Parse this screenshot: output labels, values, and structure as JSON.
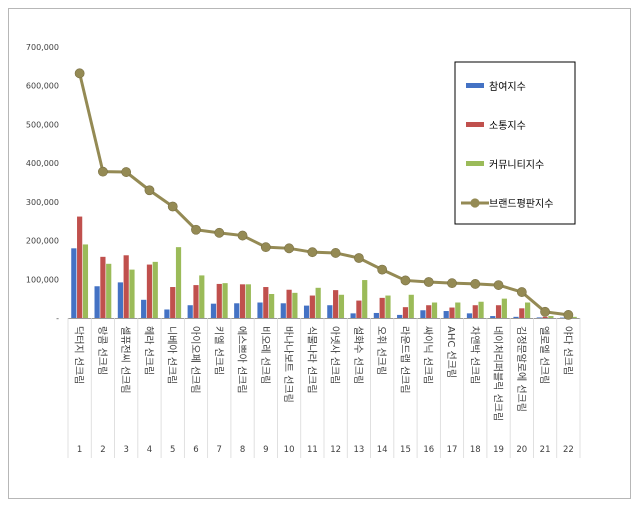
{
  "chart_data": {
    "type": "bar",
    "title": "",
    "xlabel": "",
    "ylabel": "",
    "ylim": [
      0,
      700000
    ],
    "y_ticks": [
      "-",
      "100,000",
      "200,000",
      "300,000",
      "400,000",
      "500,000",
      "600,000",
      "700,000"
    ],
    "grid": false,
    "legend_position": "top-right",
    "categories": [
      "닥터지 선크림",
      "랑콤 선크림",
      "셀퓨전씨 선크림",
      "헤라 선크림",
      "니베아 선크림",
      "아이오페 선크림",
      "키엘 선크림",
      "에스쁘아 선크림",
      "비오레 선크림",
      "바나나보트 선크림",
      "식물나라 선크림",
      "아넷사 선크림",
      "설화수 선크림",
      "오휘 선크림",
      "라운드랩 선크림",
      "싸이닉 선크림",
      "AHC 선크림",
      "차앤박 선크림",
      "네이처리퍼블릭 선크림",
      "김정문알로에 선크림",
      "엘로엘 선크림",
      "야다 선크림"
    ],
    "ranks": [
      "1",
      "2",
      "3",
      "4",
      "5",
      "6",
      "7",
      "8",
      "9",
      "10",
      "11",
      "12",
      "13",
      "14",
      "15",
      "16",
      "17",
      "18",
      "19",
      "20",
      "21",
      "22"
    ],
    "series": [
      {
        "name": "참여지수",
        "kind": "bar",
        "color": "#4472C4",
        "values": [
          180000,
          82000,
          92000,
          47000,
          22000,
          33000,
          37000,
          38000,
          40000,
          38000,
          32000,
          33000,
          12000,
          13000,
          8000,
          20000,
          18000,
          12000,
          5000,
          3000,
          1500,
          1000
        ]
      },
      {
        "name": "소통지수",
        "kind": "bar",
        "color": "#C0504D",
        "values": [
          262000,
          158000,
          162000,
          138000,
          80000,
          85000,
          88000,
          87000,
          80000,
          73000,
          58000,
          72000,
          45000,
          52000,
          28000,
          33000,
          27000,
          33000,
          33000,
          25000,
          3000,
          2500
        ]
      },
      {
        "name": "커뮤니티지수",
        "kind": "bar",
        "color": "#9BBB59",
        "values": [
          190000,
          140000,
          125000,
          145000,
          183000,
          110000,
          90000,
          87000,
          62000,
          65000,
          78000,
          60000,
          98000,
          58000,
          60000,
          40000,
          40000,
          42000,
          50000,
          40000,
          5000,
          3000
        ]
      },
      {
        "name": "브랜드평판지수",
        "kind": "line",
        "color": "#948A54",
        "values": [
          632000,
          378000,
          377000,
          330000,
          288000,
          228000,
          220000,
          213000,
          183000,
          180000,
          170000,
          168000,
          155000,
          125000,
          97000,
          93000,
          90000,
          88000,
          85000,
          67000,
          16000,
          8000
        ]
      }
    ]
  }
}
